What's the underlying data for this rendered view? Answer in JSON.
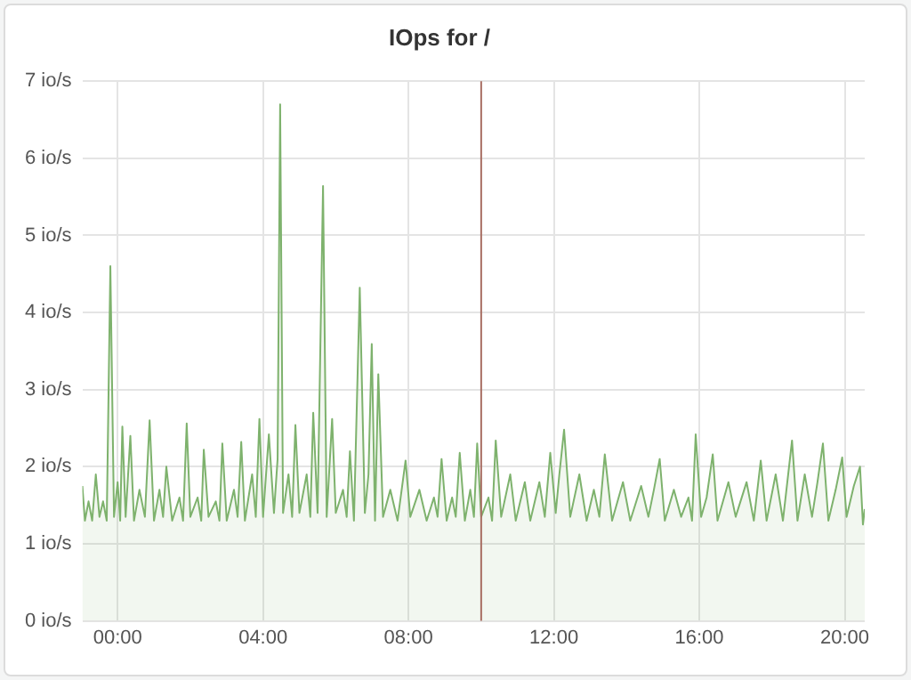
{
  "chart_data": {
    "type": "area",
    "title": "IOps for /",
    "xlim": [
      -0.97,
      20.55
    ],
    "xticks": [
      {
        "value": 0,
        "label": "00:00"
      },
      {
        "value": 4,
        "label": "04:00"
      },
      {
        "value": 8,
        "label": "08:00"
      },
      {
        "value": 12,
        "label": "12:00"
      },
      {
        "value": 16,
        "label": "16:00"
      },
      {
        "value": 20,
        "label": "20:00"
      }
    ],
    "ylim": [
      0,
      7
    ],
    "yticks": [
      {
        "value": 0,
        "label": "0 io/s"
      },
      {
        "value": 1,
        "label": "1 io/s"
      },
      {
        "value": 2,
        "label": "2 io/s"
      },
      {
        "value": 3,
        "label": "3 io/s"
      },
      {
        "value": 4,
        "label": "4 io/s"
      },
      {
        "value": 5,
        "label": "5 io/s"
      },
      {
        "value": 6,
        "label": "6 io/s"
      },
      {
        "value": 7,
        "label": "7 io/s"
      }
    ],
    "grid": true,
    "legend": false,
    "marker": "none",
    "line_style": "solid",
    "ref_lines": [
      {
        "axis": "x",
        "value": 10,
        "color": "#a86f63"
      }
    ],
    "series": [
      {
        "color": "#7eb26d",
        "x": [
          -0.97,
          -0.9,
          -0.8,
          -0.7,
          -0.6,
          -0.5,
          -0.4,
          -0.3,
          -0.2,
          -0.1,
          0.0,
          0.07,
          0.13,
          0.22,
          0.35,
          0.45,
          0.6,
          0.75,
          0.88,
          1.0,
          1.15,
          1.25,
          1.34,
          1.5,
          1.7,
          1.8,
          1.9,
          2.0,
          2.2,
          2.3,
          2.37,
          2.5,
          2.7,
          2.8,
          2.88,
          3.0,
          3.2,
          3.3,
          3.4,
          3.5,
          3.7,
          3.8,
          3.9,
          4.0,
          4.16,
          4.3,
          4.4,
          4.47,
          4.55,
          4.7,
          4.8,
          4.89,
          5.0,
          5.2,
          5.3,
          5.38,
          5.5,
          5.65,
          5.75,
          5.9,
          6.0,
          6.2,
          6.3,
          6.39,
          6.5,
          6.66,
          6.8,
          6.9,
          6.99,
          7.08,
          7.17,
          7.3,
          7.5,
          7.7,
          7.92,
          8.05,
          8.3,
          8.5,
          8.7,
          8.8,
          8.91,
          9.05,
          9.2,
          9.3,
          9.41,
          9.55,
          9.7,
          9.8,
          9.89,
          10.0,
          10.2,
          10.3,
          10.4,
          10.55,
          10.8,
          10.95,
          11.2,
          11.35,
          11.6,
          11.75,
          11.9,
          12.05,
          12.15,
          12.28,
          12.45,
          12.7,
          12.9,
          13.1,
          13.25,
          13.4,
          13.6,
          13.9,
          14.1,
          14.4,
          14.6,
          14.75,
          14.91,
          15.05,
          15.3,
          15.5,
          15.7,
          15.8,
          15.9,
          16.05,
          16.2,
          16.37,
          16.5,
          16.8,
          17.0,
          17.3,
          17.5,
          17.69,
          17.85,
          18.1,
          18.3,
          18.55,
          18.7,
          18.9,
          19.1,
          19.25,
          19.4,
          19.55,
          19.75,
          19.93,
          20.05,
          20.25,
          20.42,
          20.5,
          20.55
        ],
        "values": [
          1.75,
          1.3,
          1.55,
          1.3,
          1.9,
          1.35,
          1.55,
          1.3,
          4.6,
          1.35,
          1.8,
          1.3,
          2.52,
          1.35,
          2.4,
          1.3,
          1.7,
          1.35,
          2.6,
          1.3,
          1.7,
          1.35,
          2.0,
          1.3,
          1.6,
          1.3,
          2.56,
          1.35,
          1.6,
          1.3,
          2.22,
          1.35,
          1.55,
          1.3,
          2.3,
          1.3,
          1.7,
          1.35,
          2.32,
          1.3,
          1.9,
          1.35,
          2.62,
          1.35,
          2.42,
          1.4,
          2.1,
          6.7,
          1.4,
          1.9,
          1.35,
          2.54,
          1.4,
          1.9,
          1.35,
          2.7,
          1.4,
          5.64,
          1.35,
          2.62,
          1.4,
          1.7,
          1.35,
          2.2,
          1.3,
          4.32,
          1.4,
          1.9,
          3.59,
          1.3,
          3.2,
          1.35,
          1.7,
          1.3,
          2.08,
          1.35,
          1.7,
          1.3,
          1.6,
          1.35,
          2.1,
          1.3,
          1.6,
          1.35,
          2.18,
          1.3,
          1.7,
          1.35,
          2.3,
          1.35,
          1.6,
          1.3,
          2.34,
          1.35,
          1.9,
          1.3,
          1.8,
          1.3,
          1.8,
          1.35,
          2.18,
          1.4,
          1.9,
          2.48,
          1.35,
          1.9,
          1.3,
          1.7,
          1.35,
          2.16,
          1.3,
          1.8,
          1.3,
          1.75,
          1.35,
          1.7,
          2.1,
          1.3,
          1.7,
          1.35,
          1.6,
          1.3,
          2.42,
          1.35,
          1.6,
          2.16,
          1.3,
          1.8,
          1.35,
          1.8,
          1.3,
          2.08,
          1.3,
          1.9,
          1.3,
          2.34,
          1.3,
          1.9,
          1.35,
          1.8,
          2.3,
          1.3,
          1.7,
          2.12,
          1.35,
          1.75,
          2.0,
          1.25,
          1.45
        ]
      }
    ]
  }
}
